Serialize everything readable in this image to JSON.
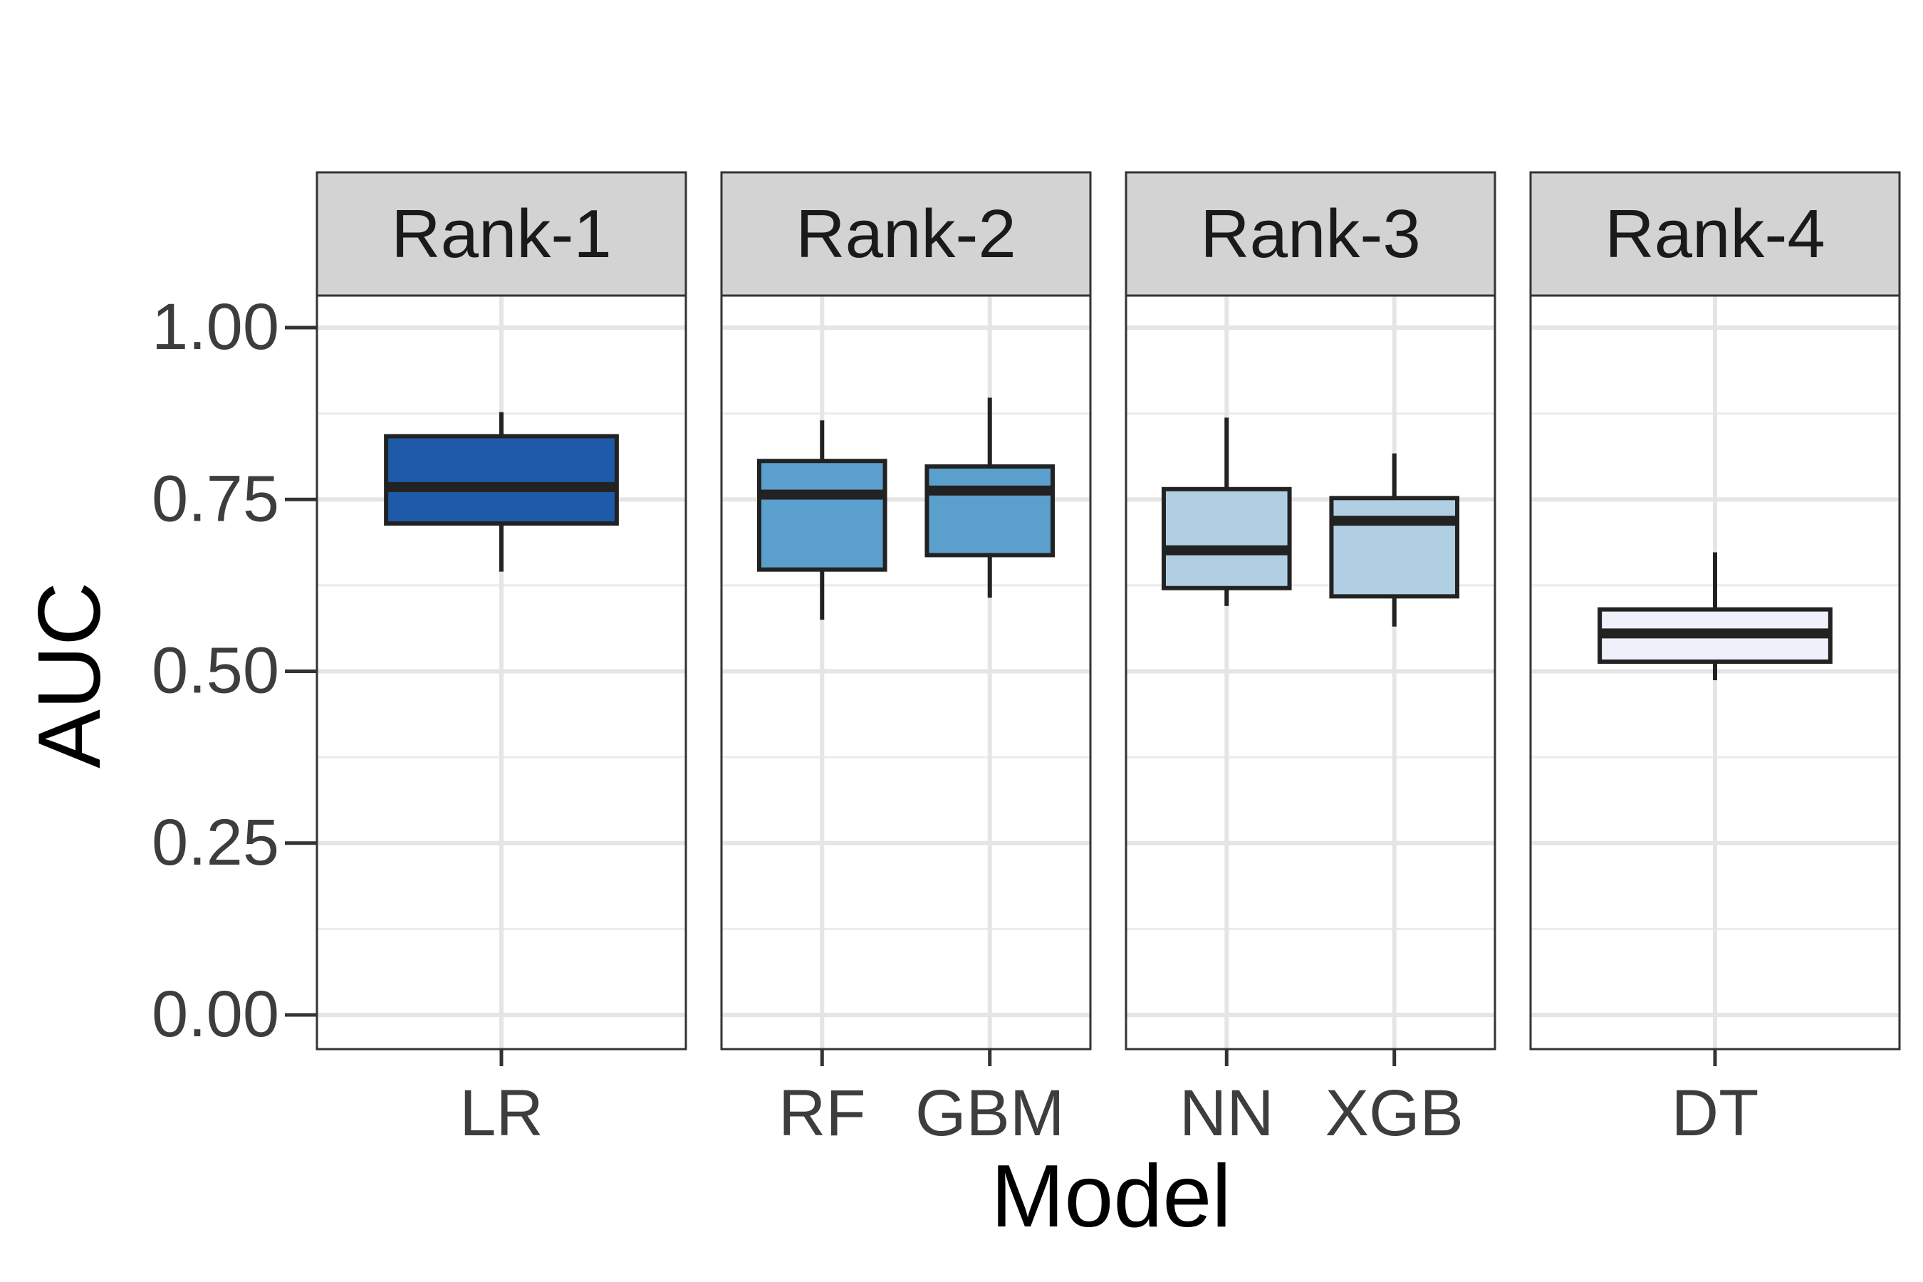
{
  "chart_data": {
    "type": "box",
    "xlabel": "Model",
    "ylabel": "AUC",
    "ylim": [
      0,
      1
    ],
    "y_ticks": [
      "0.00",
      "0.25",
      "0.50",
      "0.75",
      "1.00"
    ],
    "grid": true,
    "facet_strip_color": "#d3d3d3",
    "facets": [
      {
        "label": "Rank-1",
        "models": [
          {
            "name": "LR",
            "whisker_low": 0.645,
            "q1": 0.715,
            "median": 0.768,
            "q3": 0.842,
            "whisker_high": 0.877,
            "color": "#1f5aa8"
          }
        ]
      },
      {
        "label": "Rank-2",
        "models": [
          {
            "name": "RF",
            "whisker_low": 0.575,
            "q1": 0.648,
            "median": 0.757,
            "q3": 0.806,
            "whisker_high": 0.865,
            "color": "#5b9fcc"
          },
          {
            "name": "GBM",
            "whisker_low": 0.607,
            "q1": 0.669,
            "median": 0.763,
            "q3": 0.798,
            "whisker_high": 0.898,
            "color": "#5b9fcc"
          }
        ]
      },
      {
        "label": "Rank-3",
        "models": [
          {
            "name": "NN",
            "whisker_low": 0.595,
            "q1": 0.621,
            "median": 0.676,
            "q3": 0.765,
            "whisker_high": 0.869,
            "color": "#b1cfe3"
          },
          {
            "name": "XGB",
            "whisker_low": 0.565,
            "q1": 0.609,
            "median": 0.719,
            "q3": 0.752,
            "whisker_high": 0.817,
            "color": "#b1cfe3"
          }
        ]
      },
      {
        "label": "Rank-4",
        "models": [
          {
            "name": "DT",
            "whisker_low": 0.487,
            "q1": 0.514,
            "median": 0.555,
            "q3": 0.59,
            "whisker_high": 0.673,
            "color": "#eef0fa"
          }
        ]
      }
    ]
  }
}
